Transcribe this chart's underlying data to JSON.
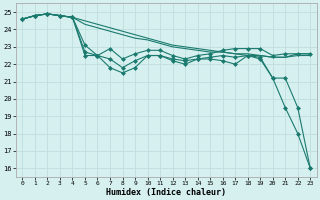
{
  "xlabel": "Humidex (Indice chaleur)",
  "bg_color": "#d6f0f0",
  "line_color": "#1a7a6e",
  "grid_color": "#c0dede",
  "xlim": [
    -0.5,
    23.5
  ],
  "ylim": [
    15.5,
    25.5
  ],
  "yticks": [
    16,
    17,
    18,
    19,
    20,
    21,
    22,
    23,
    24,
    25
  ],
  "xticks": [
    0,
    1,
    2,
    3,
    4,
    5,
    6,
    7,
    8,
    9,
    10,
    11,
    12,
    13,
    14,
    15,
    16,
    17,
    18,
    19,
    20,
    21,
    22,
    23
  ],
  "series": [
    {
      "x": [
        0,
        1,
        2,
        3,
        4,
        5,
        6,
        7,
        8,
        9,
        10,
        11,
        12,
        13,
        14,
        15,
        16,
        17,
        18,
        19,
        20,
        21,
        22,
        23
      ],
      "y": [
        24.6,
        24.8,
        24.9,
        24.8,
        24.7,
        24.5,
        24.3,
        24.1,
        23.9,
        23.7,
        23.5,
        23.3,
        23.1,
        23.0,
        22.9,
        22.8,
        22.7,
        22.6,
        22.6,
        22.5,
        22.4,
        22.4,
        22.6,
        22.6
      ],
      "markers": false
    },
    {
      "x": [
        0,
        1,
        2,
        3,
        4,
        5,
        6,
        7,
        8,
        9,
        10,
        11,
        12,
        13,
        14,
        15,
        16,
        17,
        18,
        19,
        20,
        21,
        22,
        23
      ],
      "y": [
        24.6,
        24.8,
        24.9,
        24.8,
        24.7,
        24.3,
        24.1,
        23.9,
        23.7,
        23.5,
        23.4,
        23.2,
        23.0,
        22.9,
        22.8,
        22.7,
        22.7,
        22.6,
        22.5,
        22.5,
        22.4,
        22.4,
        22.5,
        22.5
      ],
      "markers": false
    },
    {
      "x": [
        0,
        1,
        2,
        3,
        4,
        5,
        6,
        7,
        8,
        9,
        10,
        11,
        12,
        13,
        14,
        15,
        16,
        17,
        18,
        19,
        20,
        21,
        22,
        23
      ],
      "y": [
        24.6,
        24.8,
        24.9,
        24.8,
        24.7,
        23.1,
        22.5,
        22.9,
        22.3,
        22.6,
        22.8,
        22.8,
        22.5,
        22.3,
        22.5,
        22.6,
        22.8,
        22.9,
        22.9,
        22.9,
        22.5,
        22.6,
        22.6,
        22.6
      ],
      "markers": true
    },
    {
      "x": [
        0,
        1,
        2,
        3,
        4,
        5,
        6,
        7,
        8,
        9,
        10,
        11,
        12,
        13,
        14,
        15,
        16,
        17,
        18,
        19,
        20,
        21,
        22,
        23
      ],
      "y": [
        24.6,
        24.8,
        24.9,
        24.8,
        24.7,
        22.7,
        22.5,
        22.3,
        21.8,
        22.2,
        22.5,
        22.5,
        22.3,
        22.2,
        22.3,
        22.4,
        22.5,
        22.4,
        22.5,
        22.4,
        21.2,
        21.2,
        19.5,
        16.0
      ],
      "markers": true
    },
    {
      "x": [
        0,
        1,
        2,
        3,
        4,
        5,
        6,
        7,
        8,
        9,
        10,
        11,
        12,
        13,
        14,
        15,
        16,
        17,
        18,
        19,
        20,
        21,
        22,
        23
      ],
      "y": [
        24.6,
        24.8,
        24.9,
        24.8,
        24.7,
        22.5,
        22.5,
        21.8,
        21.5,
        21.8,
        22.5,
        22.5,
        22.2,
        22.0,
        22.3,
        22.3,
        22.2,
        22.0,
        22.5,
        22.3,
        21.2,
        19.5,
        18.0,
        16.0
      ],
      "markers": true
    }
  ]
}
